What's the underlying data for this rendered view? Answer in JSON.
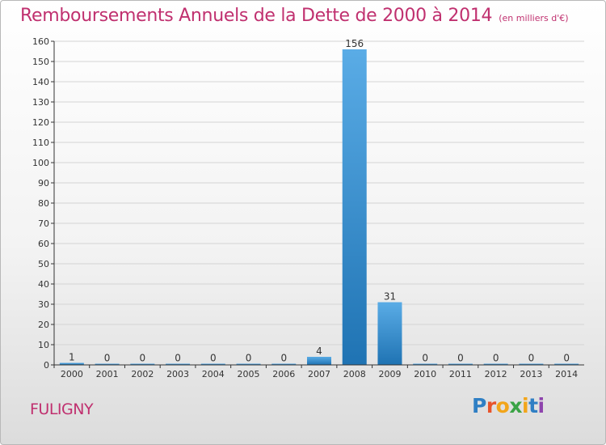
{
  "header": {
    "title": "Remboursements Annuels de la Dette de 2000 à 2014",
    "unit": "(en milliers d'€)"
  },
  "footer": {
    "commune": "FULIGNY",
    "logo_text": "Proxiti"
  },
  "colors": {
    "title": "#c0306f",
    "bar_light": "#5aace6",
    "bar_dark": "#1f73b3",
    "axis": "#333333",
    "gridline": "#d4d4d4",
    "logo_letters": [
      "#2f7fc4",
      "#e8542b",
      "#f2a51a",
      "#3aa345",
      "#f2a51a",
      "#2f7fc4",
      "#8e44ad"
    ]
  },
  "chart_data": {
    "type": "bar",
    "title": "Remboursements Annuels de la Dette de 2000 à 2014",
    "xlabel": "",
    "ylabel": "",
    "categories": [
      "2000",
      "2001",
      "2002",
      "2003",
      "2004",
      "2005",
      "2006",
      "2007",
      "2008",
      "2009",
      "2010",
      "2011",
      "2012",
      "2013",
      "2014"
    ],
    "values": [
      1,
      0,
      0,
      0,
      0,
      0,
      0,
      4,
      156,
      31,
      0,
      0,
      0,
      0,
      0
    ],
    "ylim": [
      0,
      160
    ],
    "yticks": [
      0,
      10,
      20,
      30,
      40,
      50,
      60,
      70,
      80,
      90,
      100,
      110,
      120,
      130,
      140,
      150,
      160
    ],
    "grid": true,
    "legend": "none"
  }
}
